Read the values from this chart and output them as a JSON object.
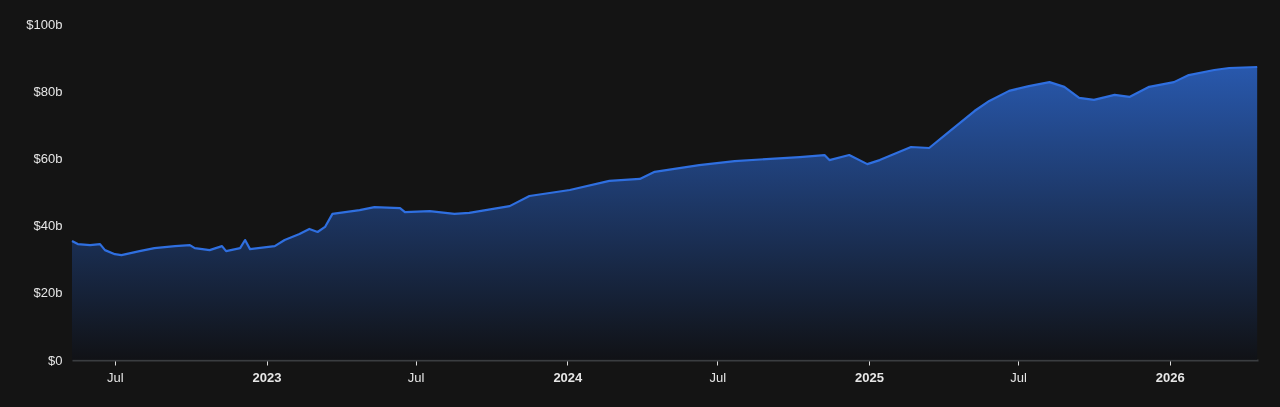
{
  "chart_data": {
    "type": "area",
    "color": "#2f6fe0",
    "x": [
      "2022-05-10",
      "2022-05-17",
      "2022-06-01",
      "2022-06-13",
      "2022-06-19",
      "2022-07-01",
      "2022-07-09",
      "2022-07-31",
      "2022-08-18",
      "2022-09-12",
      "2022-09-30",
      "2022-10-06",
      "2022-10-24",
      "2022-11-08",
      "2022-11-13",
      "2022-11-30",
      "2022-12-06",
      "2022-12-12",
      "2023-01-11",
      "2023-01-23",
      "2023-02-10",
      "2023-02-22",
      "2023-03-04",
      "2023-03-13",
      "2023-03-22",
      "2023-04-24",
      "2023-05-12",
      "2023-06-12",
      "2023-06-18",
      "2023-07-18",
      "2023-08-17",
      "2023-09-04",
      "2023-10-23",
      "2023-11-16",
      "2024-01-04",
      "2024-02-21",
      "2024-03-29",
      "2024-04-16",
      "2024-06-09",
      "2024-07-22",
      "2024-10-09",
      "2024-11-08",
      "2024-11-14",
      "2024-12-08",
      "2024-12-30",
      "2025-01-14",
      "2025-02-21",
      "2025-03-15",
      "2025-04-08",
      "2025-05-09",
      "2025-05-27",
      "2025-06-20",
      "2025-07-14",
      "2025-08-08",
      "2025-08-26",
      "2025-09-13",
      "2025-10-01",
      "2025-10-26",
      "2025-11-13",
      "2025-12-07",
      "2026-01-06",
      "2026-01-24",
      "2026-02-24",
      "2026-03-14",
      "2026-04-17"
    ],
    "values": [
      35.4,
      34.5,
      34.2,
      34.5,
      32.7,
      31.5,
      31.2,
      32.4,
      33.3,
      33.9,
      34.2,
      33.3,
      32.7,
      33.9,
      32.4,
      33.3,
      35.7,
      33,
      33.9,
      35.7,
      37.5,
      39,
      38.1,
      39.6,
      43.5,
      44.6,
      45.5,
      45.2,
      44,
      44.3,
      43.5,
      43.8,
      45.8,
      48.8,
      50.6,
      53.3,
      53.9,
      56,
      58,
      59.2,
      60.4,
      61,
      59.5,
      61,
      58.3,
      59.5,
      63.4,
      63.1,
      67.9,
      74.1,
      77.1,
      80.1,
      81.5,
      82.7,
      81.3,
      78,
      77.4,
      78.9,
      78.3,
      81.3,
      82.7,
      84.8,
      86.3,
      86.9,
      87.2
    ],
    "xlim": [
      "2022-05-10",
      "2026-04-18"
    ],
    "xticks": [
      {
        "value": "2022-07-01",
        "label": "Jul"
      },
      {
        "value": "2023-01-01",
        "label": "2023"
      },
      {
        "value": "2023-07-01",
        "label": "Jul"
      },
      {
        "value": "2024-01-01",
        "label": "2024"
      },
      {
        "value": "2024-07-01",
        "label": "Jul"
      },
      {
        "value": "2025-01-01",
        "label": "2025"
      },
      {
        "value": "2025-07-01",
        "label": "Jul"
      },
      {
        "value": "2026-01-01",
        "label": "2026"
      }
    ],
    "ylim": [
      0,
      100
    ],
    "yticks": [
      {
        "value": 0,
        "label": "$0"
      },
      {
        "value": 20,
        "label": "$20b"
      },
      {
        "value": 40,
        "label": "$40b"
      },
      {
        "value": 60,
        "label": "$60b"
      },
      {
        "value": 80,
        "label": "$80b"
      },
      {
        "value": 100,
        "label": "$100b"
      }
    ],
    "grid": false
  }
}
